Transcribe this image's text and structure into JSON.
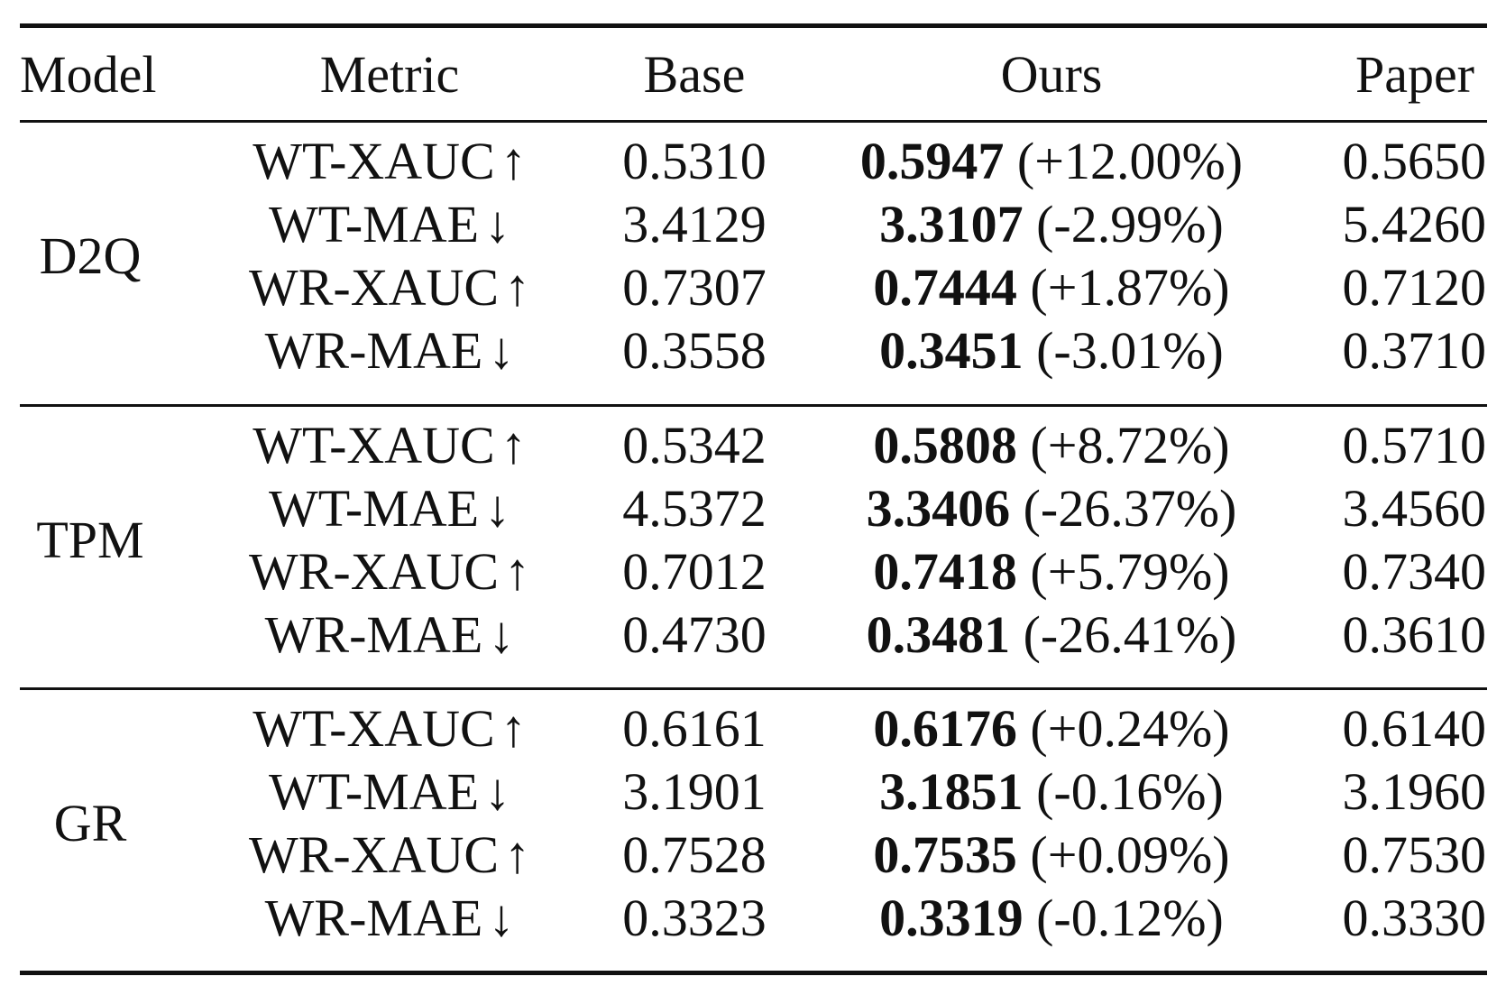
{
  "table": {
    "columns": [
      "Model",
      "Metric",
      "Base",
      "Ours",
      "Paper"
    ],
    "groups": [
      {
        "model": "D2Q",
        "rows": [
          {
            "metric": "WT-XAUC",
            "arrow": "↑",
            "base": "0.5310",
            "ours": "0.5947",
            "change": "(+12.00%)",
            "paper": "0.5650"
          },
          {
            "metric": "WT-MAE",
            "arrow": "↓",
            "base": "3.4129",
            "ours": "3.3107",
            "change": "(-2.99%)",
            "paper": "5.4260"
          },
          {
            "metric": "WR-XAUC",
            "arrow": "↑",
            "base": "0.7307",
            "ours": "0.7444",
            "change": "(+1.87%)",
            "paper": "0.7120"
          },
          {
            "metric": "WR-MAE",
            "arrow": "↓",
            "base": "0.3558",
            "ours": "0.3451",
            "change": "(-3.01%)",
            "paper": "0.3710"
          }
        ]
      },
      {
        "model": "TPM",
        "rows": [
          {
            "metric": "WT-XAUC",
            "arrow": "↑",
            "base": "0.5342",
            "ours": "0.5808",
            "change": "(+8.72%)",
            "paper": "0.5710"
          },
          {
            "metric": "WT-MAE",
            "arrow": "↓",
            "base": "4.5372",
            "ours": "3.3406",
            "change": "(-26.37%)",
            "paper": "3.4560"
          },
          {
            "metric": "WR-XAUC",
            "arrow": "↑",
            "base": "0.7012",
            "ours": "0.7418",
            "change": "(+5.79%)",
            "paper": "0.7340"
          },
          {
            "metric": "WR-MAE",
            "arrow": "↓",
            "base": "0.4730",
            "ours": "0.3481",
            "change": "(-26.41%)",
            "paper": "0.3610"
          }
        ]
      },
      {
        "model": "GR",
        "rows": [
          {
            "metric": "WT-XAUC",
            "arrow": "↑",
            "base": "0.6161",
            "ours": "0.6176",
            "change": "(+0.24%)",
            "paper": "0.6140"
          },
          {
            "metric": "WT-MAE",
            "arrow": "↓",
            "base": "3.1901",
            "ours": "3.1851",
            "change": "(-0.16%)",
            "paper": "3.1960"
          },
          {
            "metric": "WR-XAUC",
            "arrow": "↑",
            "base": "0.7528",
            "ours": "0.7535",
            "change": "(+0.09%)",
            "paper": "0.7530"
          },
          {
            "metric": "WR-MAE",
            "arrow": "↓",
            "base": "0.3323",
            "ours": "0.3319",
            "change": "(-0.12%)",
            "paper": "0.3330"
          }
        ]
      }
    ]
  }
}
